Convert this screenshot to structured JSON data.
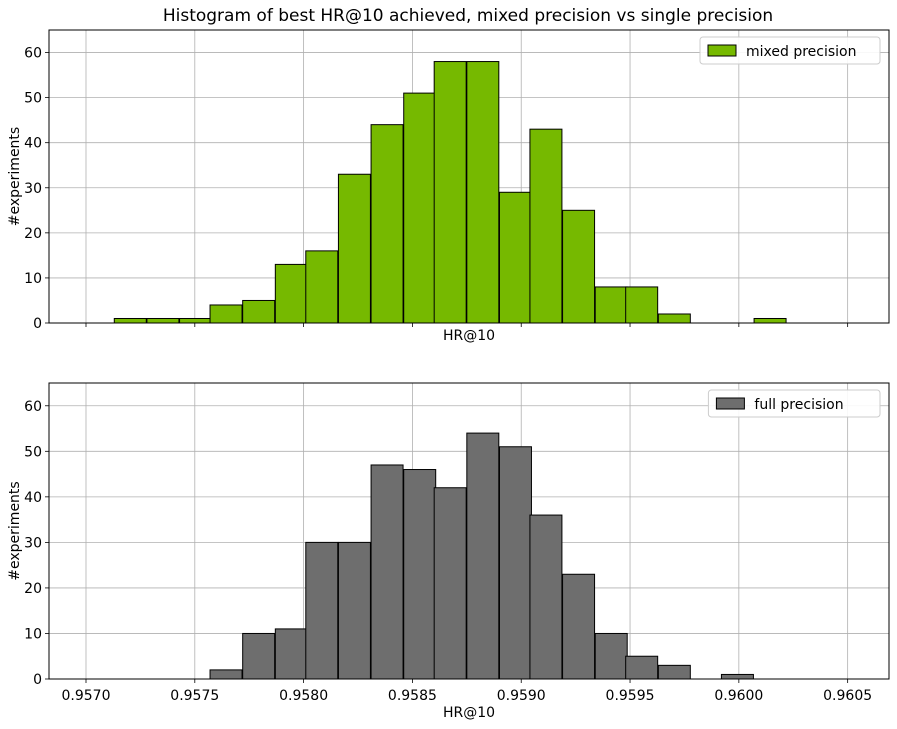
{
  "title": "Histogram of best HR@10 achieved, mixed precision vs single precision",
  "chart_data": [
    {
      "type": "bar",
      "xlabel": "HR@10",
      "ylabel": "#experiments",
      "xlim": [
        0.95683,
        0.95689
      ],
      "ylim": [
        0,
        65
      ],
      "yticks": [
        0,
        10,
        20,
        30,
        40,
        50,
        60
      ],
      "grid": true,
      "legend_position": "top-right",
      "bin_width": 0.000147,
      "series": [
        {
          "name": "mixed precision",
          "color": "#76b900",
          "bin_starts": [
            0.95713,
            0.95728,
            0.95743,
            0.95757,
            0.95772,
            0.95787,
            0.95801,
            0.95816,
            0.95831,
            0.95846,
            0.9586,
            0.95875,
            0.9589,
            0.95904,
            0.95919,
            0.95934,
            0.95948,
            0.95963,
            0.95978,
            0.95992,
            0.96007
          ],
          "counts": [
            1,
            1,
            1,
            4,
            5,
            13,
            16,
            33,
            44,
            51,
            58,
            58,
            29,
            43,
            25,
            8,
            8,
            2,
            0,
            0,
            1
          ]
        }
      ]
    },
    {
      "type": "bar",
      "xlabel": "HR@10",
      "ylabel": "#experiments",
      "xticks": [
        "0.9570",
        "0.9575",
        "0.9580",
        "0.9585",
        "0.9590",
        "0.9595",
        "0.9600",
        "0.9605"
      ],
      "ylim": [
        0,
        65
      ],
      "yticks": [
        0,
        10,
        20,
        30,
        40,
        50,
        60
      ],
      "grid": true,
      "legend_position": "top-right",
      "bin_width": 0.000147,
      "series": [
        {
          "name": "full precision",
          "color": "#6e6e6e",
          "bin_starts": [
            0.95757,
            0.95772,
            0.95787,
            0.95801,
            0.95816,
            0.95831,
            0.95846,
            0.9586,
            0.95875,
            0.9589,
            0.95904,
            0.95919,
            0.95934,
            0.95948,
            0.95963,
            0.95978,
            0.95992
          ],
          "counts": [
            2,
            10,
            11,
            30,
            30,
            47,
            46,
            42,
            54,
            51,
            36,
            23,
            10,
            5,
            3,
            0,
            1
          ]
        }
      ]
    }
  ]
}
